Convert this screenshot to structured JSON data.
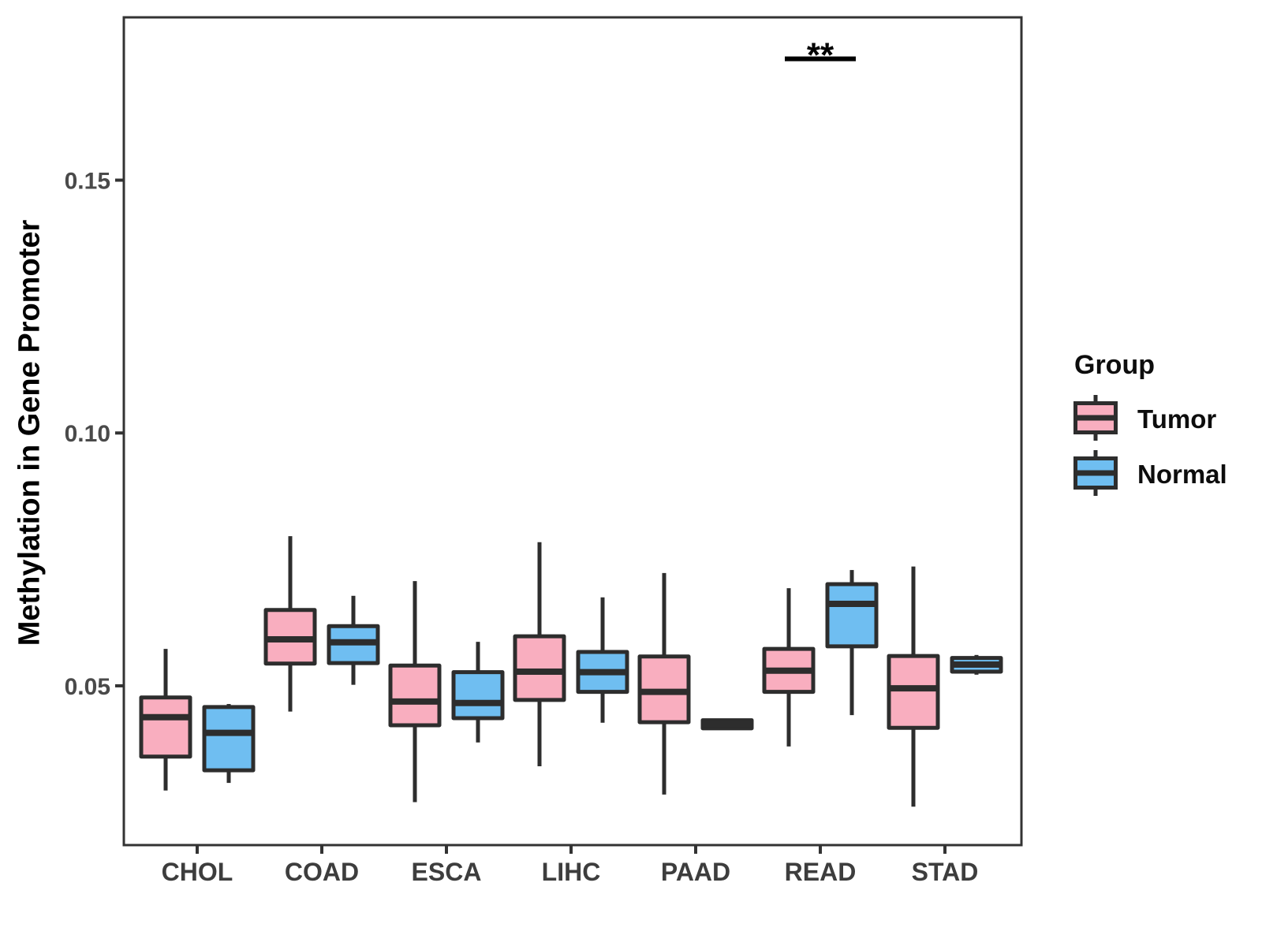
{
  "figure": {
    "ylabel": "Methylation in Gene Promoter",
    "legend": {
      "title": "Group",
      "items": [
        {
          "label": "Tumor",
          "color": "#F9AEBF"
        },
        {
          "label": "Normal",
          "color": "#6FBEF1"
        }
      ]
    }
  },
  "chart_data": {
    "type": "boxplot",
    "title": "",
    "xlabel": "",
    "ylabel": "Methylation in Gene Promoter",
    "categories": [
      "CHOL",
      "COAD",
      "ESCA",
      "LIHC",
      "PAAD",
      "READ",
      "STAD"
    ],
    "yticks": [
      0.05,
      0.1,
      0.15
    ],
    "ytick_labels": [
      "0.05",
      "0.10",
      "0.15"
    ],
    "ylim": [
      0.0185,
      0.1822
    ],
    "grid": false,
    "legend_position": "right",
    "series": [
      {
        "name": "Tumor",
        "color": "#F9AEBF",
        "boxes": [
          {
            "category": "CHOL",
            "min": 0.0293,
            "q1": 0.036,
            "median": 0.0438,
            "q3": 0.0477,
            "max": 0.0573
          },
          {
            "category": "COAD",
            "min": 0.0449,
            "q1": 0.0544,
            "median": 0.0592,
            "q3": 0.065,
            "max": 0.0796
          },
          {
            "category": "ESCA",
            "min": 0.027,
            "q1": 0.0422,
            "median": 0.0469,
            "q3": 0.054,
            "max": 0.0707
          },
          {
            "category": "LIHC",
            "min": 0.0341,
            "q1": 0.0472,
            "median": 0.0528,
            "q3": 0.0598,
            "max": 0.0784
          },
          {
            "category": "PAAD",
            "min": 0.0285,
            "q1": 0.0428,
            "median": 0.0488,
            "q3": 0.0558,
            "max": 0.0723
          },
          {
            "category": "READ",
            "min": 0.038,
            "q1": 0.0488,
            "median": 0.053,
            "q3": 0.0573,
            "max": 0.0693
          },
          {
            "category": "STAD",
            "min": 0.0261,
            "q1": 0.0417,
            "median": 0.0495,
            "q3": 0.0559,
            "max": 0.0736
          }
        ]
      },
      {
        "name": "Normal",
        "color": "#6FBEF1",
        "boxes": [
          {
            "category": "CHOL",
            "min": 0.0308,
            "q1": 0.0333,
            "median": 0.0407,
            "q3": 0.0458,
            "max": 0.0464
          },
          {
            "category": "COAD",
            "min": 0.0502,
            "q1": 0.0545,
            "median": 0.0586,
            "q3": 0.0618,
            "max": 0.0678
          },
          {
            "category": "ESCA",
            "min": 0.0388,
            "q1": 0.0436,
            "median": 0.0466,
            "q3": 0.0527,
            "max": 0.0587
          },
          {
            "category": "LIHC",
            "min": 0.0427,
            "q1": 0.0488,
            "median": 0.0527,
            "q3": 0.0567,
            "max": 0.0675
          },
          {
            "category": "PAAD",
            "min": 0.0414,
            "q1": 0.0416,
            "median": 0.0424,
            "q3": 0.0432,
            "max": 0.0433
          },
          {
            "category": "READ",
            "min": 0.0442,
            "q1": 0.0578,
            "median": 0.0662,
            "q3": 0.0701,
            "max": 0.0729
          },
          {
            "category": "STAD",
            "min": 0.0522,
            "q1": 0.0528,
            "median": 0.0542,
            "q3": 0.0555,
            "max": 0.0561
          }
        ]
      }
    ],
    "annotations": [
      {
        "type": "significance",
        "category": "READ",
        "label": "**",
        "y": 0.174
      }
    ],
    "colors": {
      "box_stroke": "#2D2D2D",
      "panel_border": "#333333",
      "axis_text": "#4a4a4a",
      "annotation": "#000000"
    }
  }
}
